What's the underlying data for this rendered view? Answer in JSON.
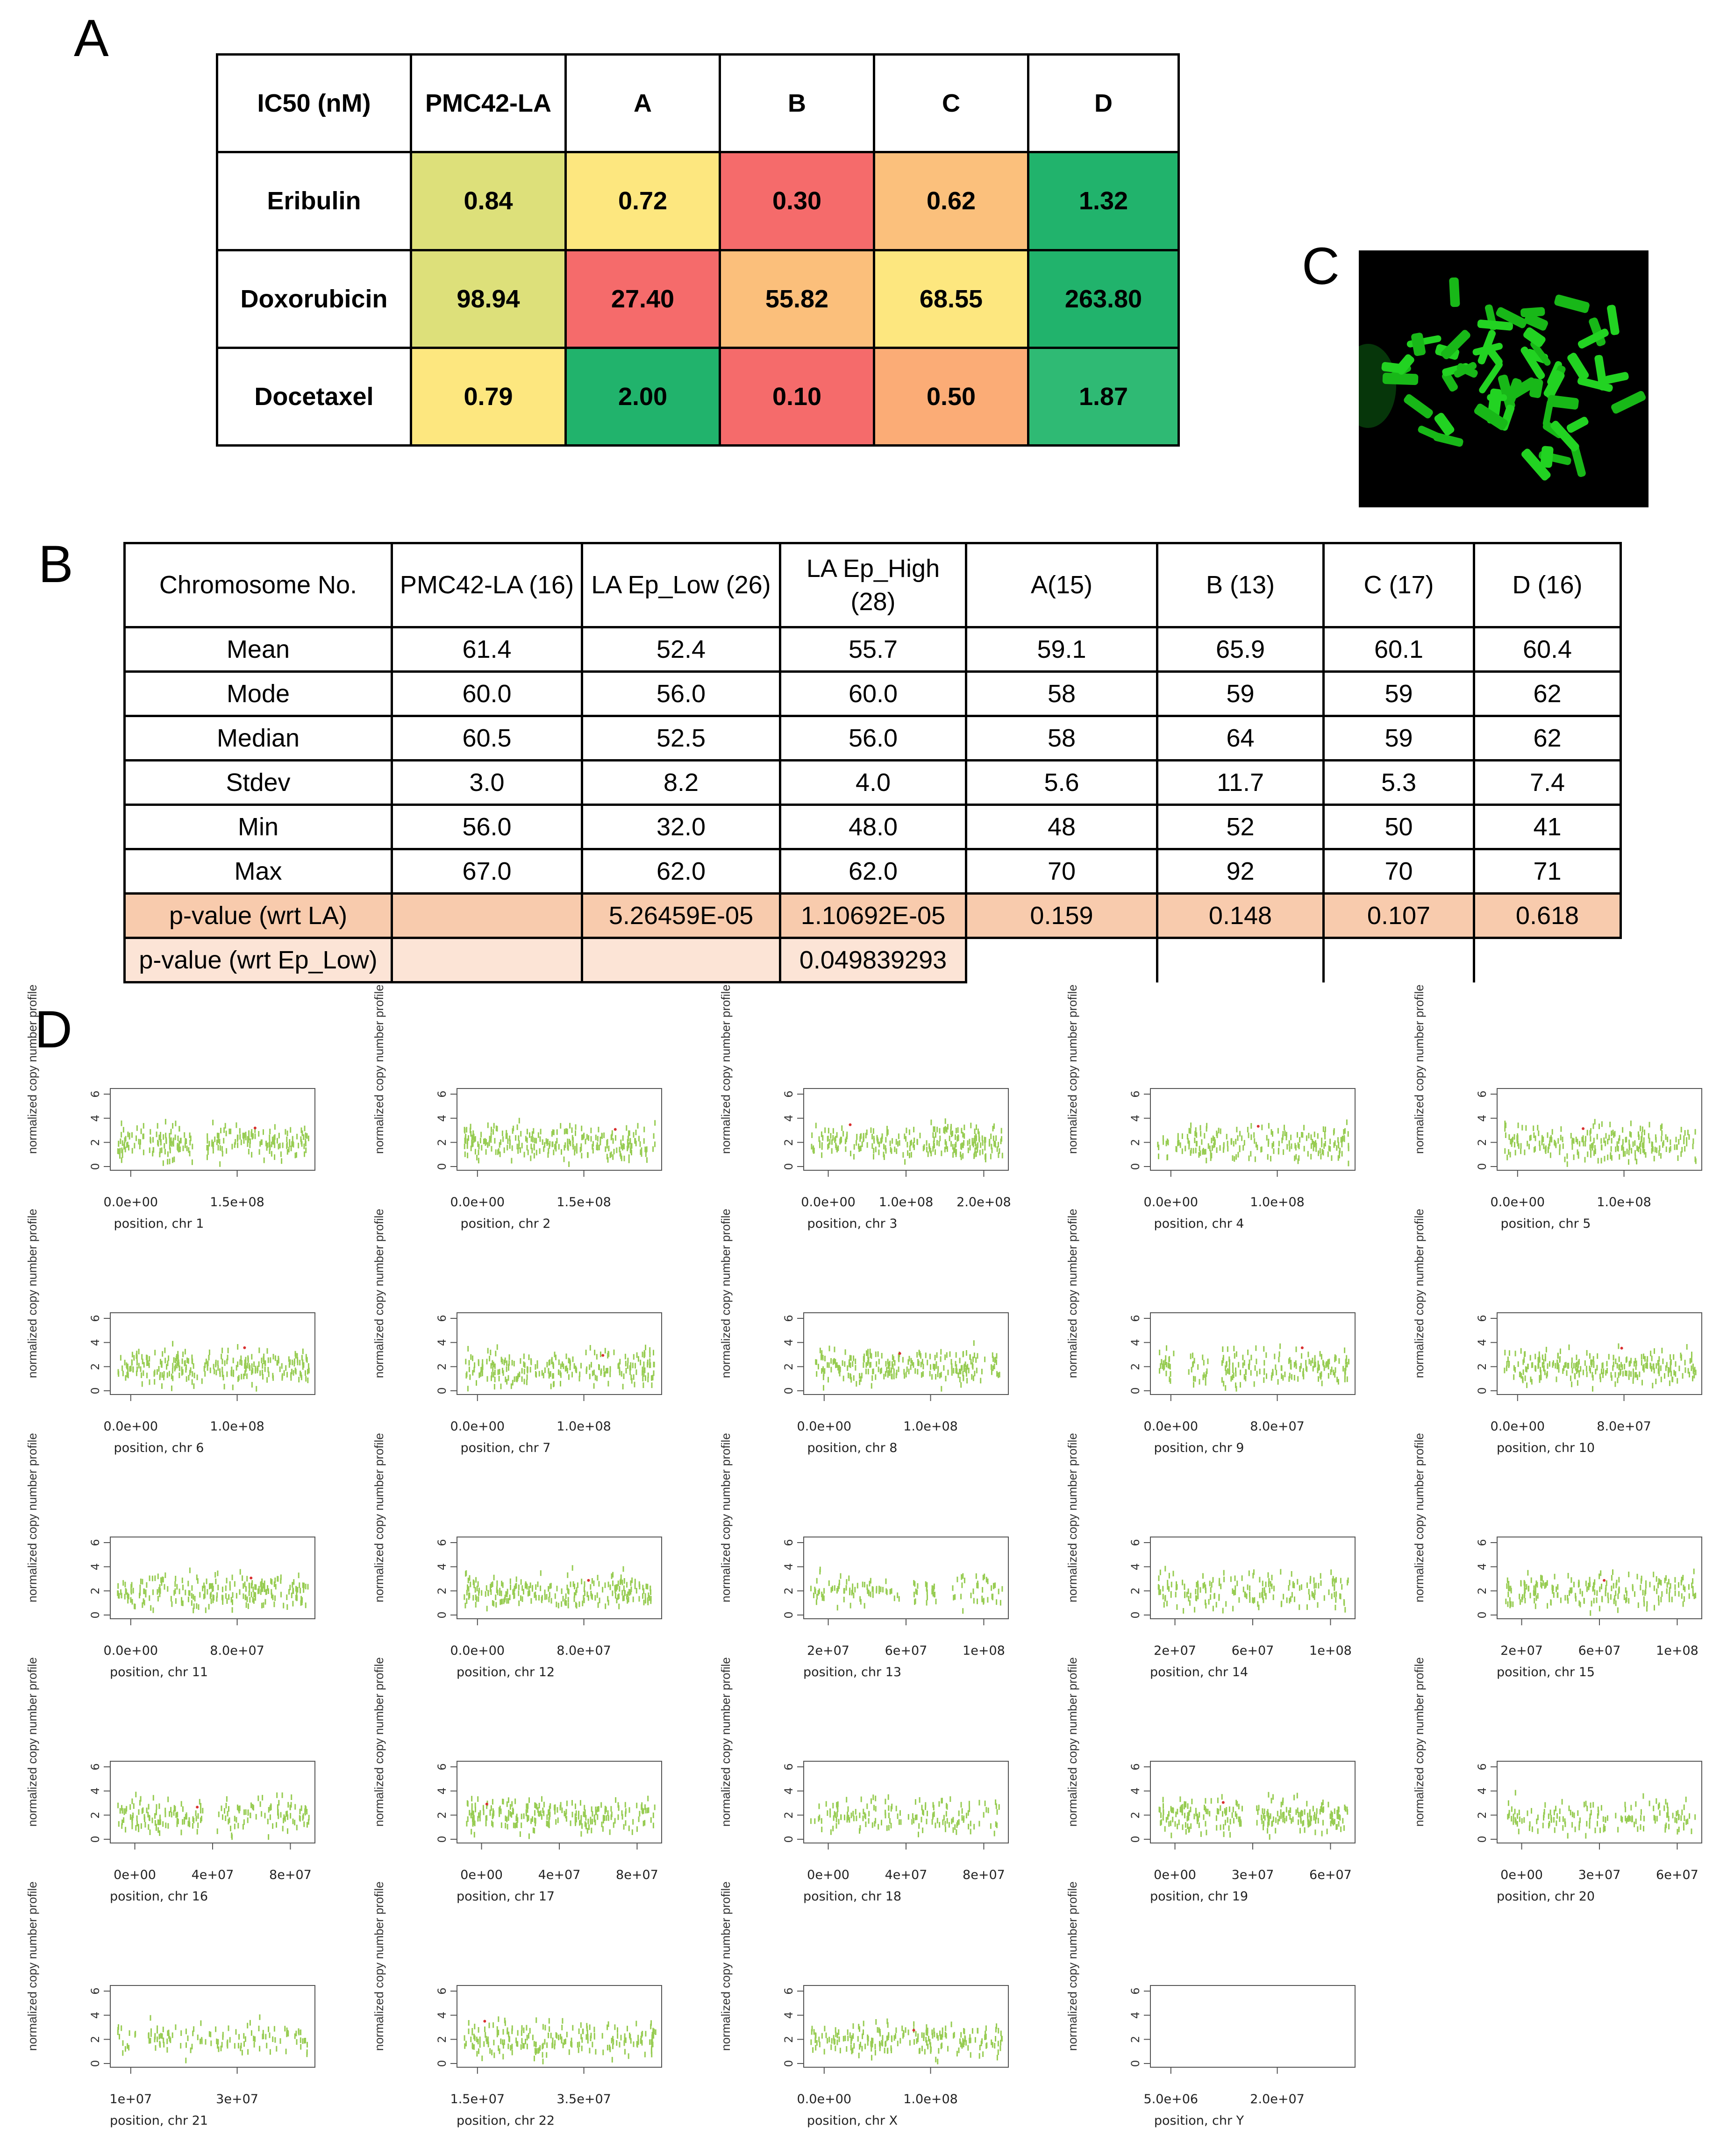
{
  "panel_labels": {
    "a": "A",
    "b": "B",
    "c": "C",
    "d": "D"
  },
  "panel_a": {
    "header": [
      "IC50 (nM)",
      "PMC42-LA",
      "A",
      "B",
      "C",
      "D"
    ],
    "rows": [
      {
        "name": "Eribulin",
        "values": [
          "0.84",
          "0.72",
          "0.30",
          "0.62",
          "1.32"
        ],
        "colors": [
          "#dde07a",
          "#fde77f",
          "#f56b6b",
          "#fbc07c",
          "#21b36c"
        ]
      },
      {
        "name": "Doxorubicin",
        "values": [
          "98.94",
          "27.40",
          "55.82",
          "68.55",
          "263.80"
        ],
        "colors": [
          "#dde07a",
          "#f56b6b",
          "#fbbf7b",
          "#fde77f",
          "#21b36c"
        ]
      },
      {
        "name": "Docetaxel",
        "values": [
          "0.79",
          "2.00",
          "0.10",
          "0.50",
          "1.87"
        ],
        "colors": [
          "#fde77f",
          "#21b36c",
          "#f56b6b",
          "#fbac76",
          "#2fba74"
        ]
      }
    ]
  },
  "panel_b": {
    "header": [
      "Chromosome No.",
      "PMC42-LA (16)",
      "LA Ep_Low (26)",
      "LA Ep_High (28)",
      "A(15)",
      "B (13)",
      "C (17)",
      "D (16)"
    ],
    "rows": [
      [
        "Mean",
        "61.4",
        "52.4",
        "55.7",
        "59.1",
        "65.9",
        "60.1",
        "60.4"
      ],
      [
        "Mode",
        "60.0",
        "56.0",
        "60.0",
        "58",
        "59",
        "59",
        "62"
      ],
      [
        "Median",
        "60.5",
        "52.5",
        "56.0",
        "58",
        "64",
        "59",
        "62"
      ],
      [
        "Stdev",
        "3.0",
        "8.2",
        "4.0",
        "5.6",
        "11.7",
        "5.3",
        "7.4"
      ],
      [
        "Min",
        "56.0",
        "32.0",
        "48.0",
        "48",
        "52",
        "50",
        "41"
      ],
      [
        "Max",
        "67.0",
        "62.0",
        "62.0",
        "70",
        "92",
        "70",
        "71"
      ]
    ],
    "pvalue_la": [
      "p-value (wrt LA)",
      "",
      "5.26459E-05",
      "1.10692E-05",
      "0.159",
      "0.148",
      "0.107",
      "0.618"
    ],
    "pvalue_eplow": [
      "p-value (wrt Ep_Low)",
      "",
      "",
      "0.049839293"
    ]
  },
  "panel_d": {
    "y_label": "normalized copy number profile",
    "y_ticks": [
      "0",
      "2",
      "4",
      "6"
    ],
    "point_color": "#8cc63f",
    "outlier_color": "#d93030",
    "chart_data": [
      {
        "type": "scatter",
        "xlabel": "position, chr 1",
        "xticks": [
          "0.0e+00",
          "1.5e+08"
        ],
        "ylim": [
          0,
          6
        ],
        "gaps": [
          0.43
        ],
        "density": 1.0
      },
      {
        "type": "scatter",
        "xlabel": "position, chr 2",
        "xticks": [
          "0.0e+00",
          "1.5e+08"
        ],
        "ylim": [
          0,
          6
        ],
        "gaps": [],
        "density": 1.0
      },
      {
        "type": "scatter",
        "xlabel": "position, chr 3",
        "xticks": [
          "0.0e+00",
          "1.0e+08",
          "2.0e+08"
        ],
        "ylim": [
          0,
          6
        ],
        "gaps": [],
        "density": 1.0
      },
      {
        "type": "scatter",
        "xlabel": "position, chr 4",
        "xticks": [
          "0.0e+00",
          "1.0e+08"
        ],
        "ylim": [
          0,
          6
        ],
        "gaps": [],
        "density": 0.8
      },
      {
        "type": "scatter",
        "xlabel": "position, chr 5",
        "xticks": [
          "0.0e+00",
          "1.0e+08"
        ],
        "ylim": [
          0,
          6
        ],
        "gaps": [],
        "density": 0.9
      },
      {
        "type": "scatter",
        "xlabel": "position, chr 6",
        "xticks": [
          "0.0e+00",
          "1.0e+08"
        ],
        "ylim": [
          0,
          6
        ],
        "gaps": [],
        "density": 1.0
      },
      {
        "type": "scatter",
        "xlabel": "position, chr 7",
        "xticks": [
          "0.0e+00",
          "1.0e+08"
        ],
        "ylim": [
          0,
          6
        ],
        "gaps": [],
        "density": 0.9
      },
      {
        "type": "scatter",
        "xlabel": "position, chr 8",
        "xticks": [
          "0.0e+00",
          "1.0e+08"
        ],
        "ylim": [
          0,
          6
        ],
        "gaps": [],
        "density": 0.9
      },
      {
        "type": "scatter",
        "xlabel": "position, chr 9",
        "xticks": [
          "0.0e+00",
          "8.0e+07"
        ],
        "ylim": [
          0,
          6
        ],
        "gaps": [
          0.12,
          0.3
        ],
        "density": 0.9
      },
      {
        "type": "scatter",
        "xlabel": "position, chr 10",
        "xticks": [
          "0.0e+00",
          "8.0e+07"
        ],
        "ylim": [
          0,
          6
        ],
        "gaps": [],
        "density": 1.0
      },
      {
        "type": "scatter",
        "xlabel": "position, chr 11",
        "xticks": [
          "0.0e+00",
          "8.0e+07"
        ],
        "ylim": [
          0,
          6
        ],
        "gaps": [],
        "density": 0.9
      },
      {
        "type": "scatter",
        "xlabel": "position, chr 12",
        "xticks": [
          "0.0e+00",
          "8.0e+07"
        ],
        "ylim": [
          0,
          6
        ],
        "gaps": [],
        "density": 0.9
      },
      {
        "type": "scatter",
        "xlabel": "position, chr 13",
        "xticks": [
          "2e+07",
          "6e+07",
          "1e+08"
        ],
        "ylim": [
          0,
          6
        ],
        "gaps": [
          0.5,
          0.7
        ],
        "density": 0.6
      },
      {
        "type": "scatter",
        "xlabel": "position, chr 14",
        "xticks": [
          "2e+07",
          "6e+07",
          "1e+08"
        ],
        "ylim": [
          0,
          6
        ],
        "gaps": [],
        "density": 0.7
      },
      {
        "type": "scatter",
        "xlabel": "position, chr 15",
        "xticks": [
          "2e+07",
          "6e+07",
          "1e+08"
        ],
        "ylim": [
          0,
          6
        ],
        "gaps": [],
        "density": 0.8
      },
      {
        "type": "scatter",
        "xlabel": "position, chr 16",
        "xticks": [
          "0e+00",
          "4e+07",
          "8e+07"
        ],
        "ylim": [
          0,
          6
        ],
        "gaps": [
          0.48
        ],
        "density": 0.8
      },
      {
        "type": "scatter",
        "xlabel": "position, chr 17",
        "xticks": [
          "0e+00",
          "4e+07",
          "8e+07"
        ],
        "ylim": [
          0,
          6
        ],
        "gaps": [],
        "density": 0.9
      },
      {
        "type": "scatter",
        "xlabel": "position, chr 18",
        "xticks": [
          "0e+00",
          "4e+07",
          "8e+07"
        ],
        "ylim": [
          0,
          6
        ],
        "gaps": [],
        "density": 0.6
      },
      {
        "type": "scatter",
        "xlabel": "position, chr 19",
        "xticks": [
          "0e+00",
          "3e+07",
          "6e+07"
        ],
        "ylim": [
          0,
          6
        ],
        "gaps": [
          0.48
        ],
        "density": 1.0
      },
      {
        "type": "scatter",
        "xlabel": "position, chr 20",
        "xticks": [
          "0e+00",
          "3e+07",
          "6e+07"
        ],
        "ylim": [
          0,
          6
        ],
        "gaps": [],
        "density": 0.6
      },
      {
        "type": "scatter",
        "xlabel": "position, chr 21",
        "xticks": [
          "1e+07",
          "3e+07"
        ],
        "ylim": [
          0,
          6
        ],
        "gaps": [],
        "density": 0.5
      },
      {
        "type": "scatter",
        "xlabel": "position, chr 22",
        "xticks": [
          "1.5e+07",
          "3.5e+07"
        ],
        "ylim": [
          0,
          6
        ],
        "gaps": [],
        "density": 0.8
      },
      {
        "type": "scatter",
        "xlabel": "position, chr X",
        "xticks": [
          "0.0e+00",
          "1.0e+08"
        ],
        "ylim": [
          0,
          6
        ],
        "gaps": [],
        "density": 0.8
      },
      {
        "type": "scatter",
        "xlabel": "position, chr Y",
        "xticks": [
          "5.0e+06",
          "2.0e+07"
        ],
        "ylim": [
          0,
          6
        ],
        "gaps": [],
        "density": 0.0
      }
    ]
  }
}
